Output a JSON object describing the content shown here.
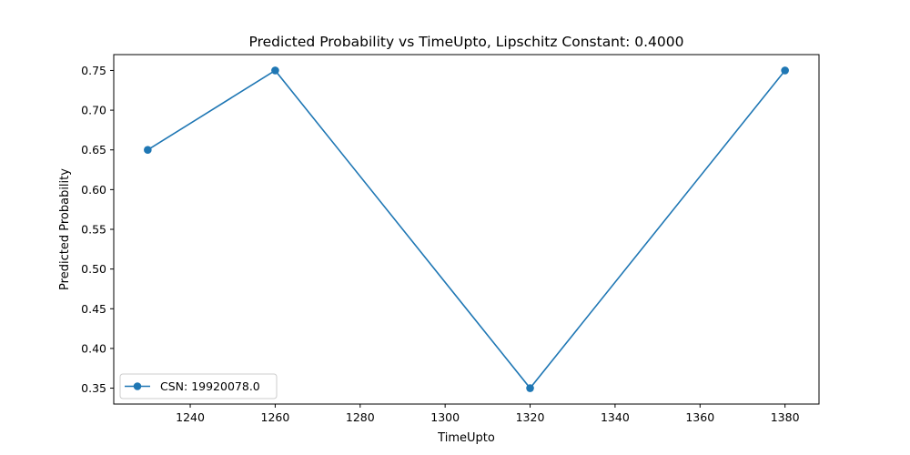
{
  "chart_data": {
    "type": "line",
    "title": "Predicted Probability vs TimeUpto, Lipschitz Constant: 0.4000",
    "xlabel": "TimeUpto",
    "ylabel": "Predicted Probability",
    "xlim": [
      1222,
      1388
    ],
    "ylim": [
      0.33,
      0.77
    ],
    "xticks": [
      1240,
      1260,
      1280,
      1300,
      1320,
      1340,
      1360,
      1380
    ],
    "xtick_labels": [
      "1240",
      "1260",
      "1280",
      "1300",
      "1320",
      "1340",
      "1360",
      "1380"
    ],
    "yticks": [
      0.35,
      0.4,
      0.45,
      0.5,
      0.55,
      0.6,
      0.65,
      0.7,
      0.75
    ],
    "ytick_labels": [
      "0.35",
      "0.40",
      "0.45",
      "0.50",
      "0.55",
      "0.60",
      "0.65",
      "0.70",
      "0.75"
    ],
    "grid": false,
    "legend_position": "lower-left",
    "series": [
      {
        "name": "CSN: 19920078.0",
        "color": "#1f77b4",
        "marker": "circle",
        "x": [
          1230,
          1260,
          1320,
          1380
        ],
        "y": [
          0.65,
          0.75,
          0.35,
          0.75
        ]
      }
    ]
  }
}
